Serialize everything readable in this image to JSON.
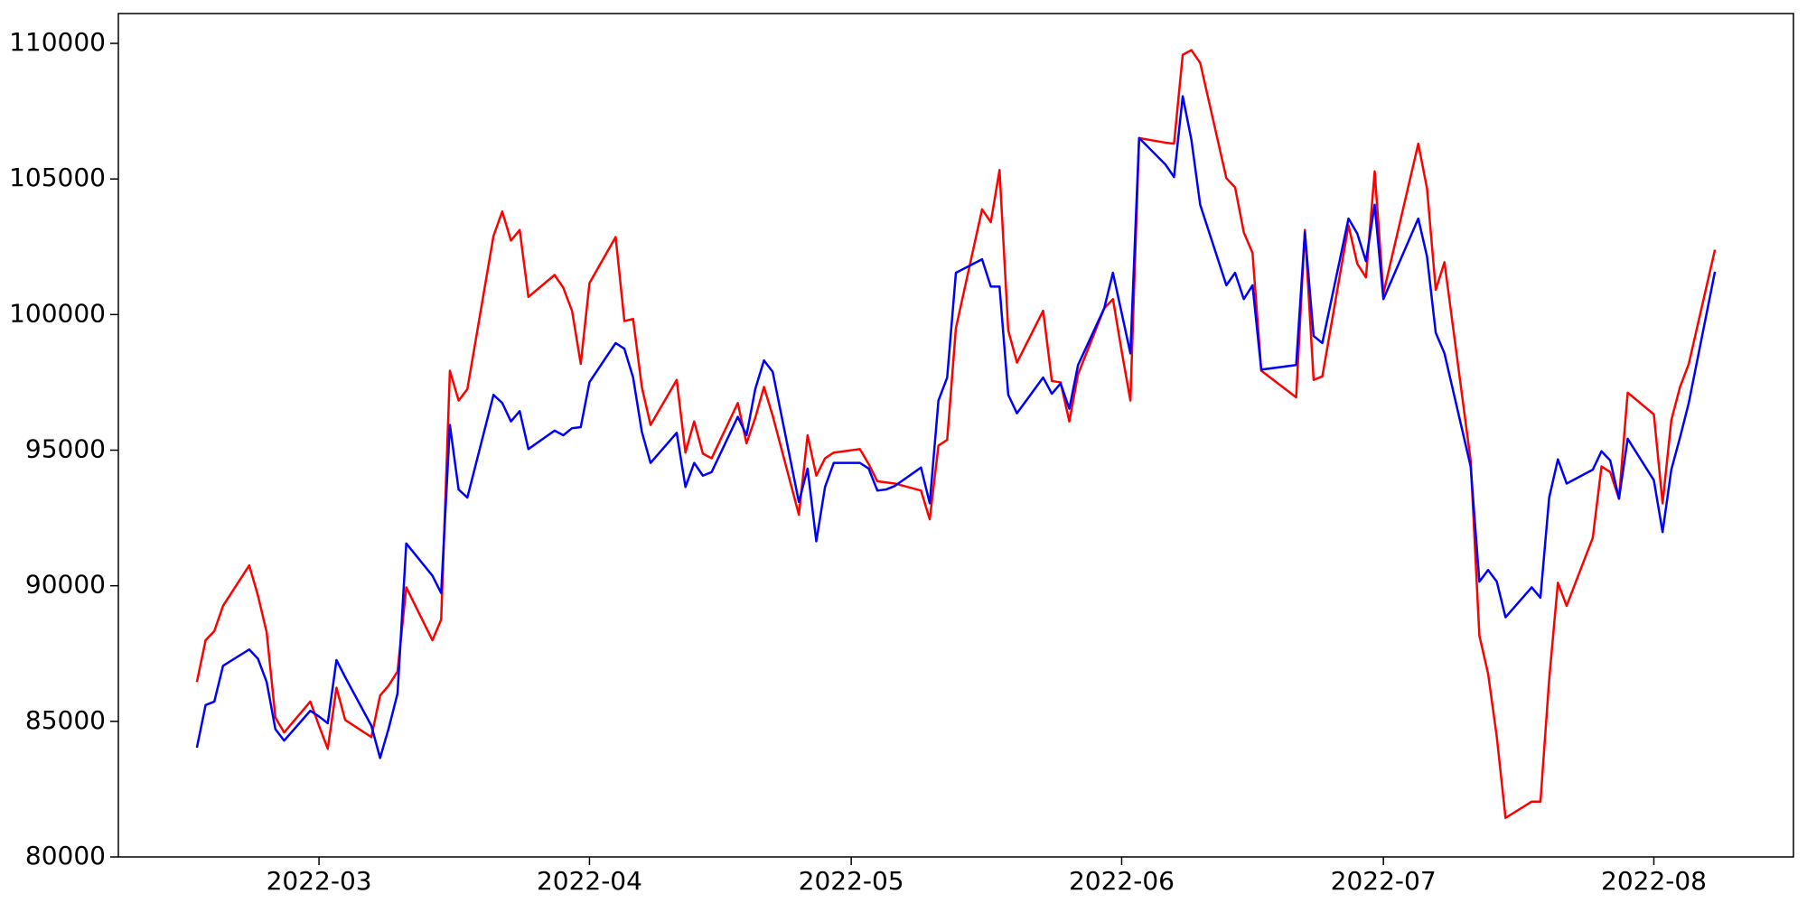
{
  "chart_data": {
    "type": "line",
    "x": [
      19038,
      19039,
      19040,
      19041,
      19044,
      19045,
      19046,
      19047,
      19048,
      19051,
      19052,
      19053,
      19054,
      19055,
      19058,
      19059,
      19060,
      19061,
      19062,
      19065,
      19066,
      19067,
      19068,
      19069,
      19072,
      19073,
      19074,
      19075,
      19076,
      19079,
      19080,
      19081,
      19082,
      19083,
      19086,
      19087,
      19088,
      19089,
      19090,
      19093,
      19094,
      19095,
      19096,
      19097,
      19100,
      19101,
      19102,
      19103,
      19104,
      19107,
      19108,
      19109,
      19110,
      19111,
      19114,
      19115,
      19116,
      19117,
      19118,
      19121,
      19122,
      19123,
      19124,
      19125,
      19128,
      19129,
      19130,
      19131,
      19132,
      19135,
      19136,
      19137,
      19138,
      19139,
      19142,
      19143,
      19144,
      19145,
      19146,
      19149,
      19150,
      19151,
      19152,
      19153,
      19156,
      19157,
      19158,
      19159,
      19160,
      19164,
      19165,
      19166,
      19167,
      19170,
      19171,
      19172,
      19173,
      19174,
      19178,
      19179,
      19180,
      19181,
      19184,
      19185,
      19186,
      19187,
      19188,
      19191,
      19192,
      19193,
      19194,
      19195,
      19198,
      19199,
      19200,
      19201,
      19202,
      19205,
      19206,
      19207,
      19208,
      19209,
      19212
    ],
    "series": [
      {
        "color": "#ff0000",
        "values": [
          86450,
          87990,
          88330,
          89260,
          90750,
          89640,
          88280,
          85140,
          84590,
          85730,
          84840,
          83990,
          86240,
          85050,
          84420,
          85950,
          86330,
          86840,
          89940,
          87990,
          88750,
          97930,
          96830,
          97250,
          102900,
          103800,
          102730,
          103120,
          100650,
          101460,
          100990,
          100140,
          98180,
          101160,
          102860,
          99760,
          99840,
          97330,
          95930,
          97590,
          94910,
          96060,
          94870,
          94700,
          96740,
          95250,
          96190,
          97330,
          96270,
          92620,
          95550,
          94060,
          94700,
          94910,
          95040,
          94490,
          93850,
          93810,
          93770,
          93510,
          92450,
          95170,
          95380,
          99500,
          103880,
          103410,
          105330,
          99420,
          98230,
          100140,
          97550,
          97500,
          96060,
          97800,
          100230,
          100570,
          98650,
          96830,
          106510,
          106340,
          106300,
          109580,
          109750,
          109280,
          105030,
          104690,
          103030,
          102270,
          97930,
          96950,
          103120,
          97590,
          97720,
          103290,
          101880,
          101370,
          105280,
          100780,
          106300,
          104650,
          100910,
          101930,
          94620,
          88160,
          86760,
          84420,
          81440,
          82040,
          82040,
          86540,
          90110,
          89260,
          91770,
          94400,
          94190,
          93210,
          97120,
          96320,
          93040,
          96100,
          97330,
          98180,
          102390
        ]
      },
      {
        "color": "#0000ff",
        "values": [
          84030,
          85600,
          85730,
          87050,
          87650,
          87310,
          86450,
          84710,
          84290,
          85390,
          85180,
          84930,
          87260,
          86630,
          84840,
          83650,
          84760,
          86030,
          91560,
          90370,
          89730,
          95930,
          93550,
          93250,
          97040,
          96740,
          96060,
          96440,
          95040,
          95720,
          95550,
          95810,
          95850,
          97510,
          98950,
          98740,
          97680,
          95680,
          94530,
          95640,
          93640,
          94530,
          94060,
          94190,
          96230,
          95550,
          97250,
          98310,
          97890,
          93090,
          94320,
          91640,
          93640,
          94530,
          94530,
          94320,
          93510,
          93550,
          93680,
          94360,
          93040,
          96830,
          97680,
          101540,
          102040,
          101030,
          101030,
          97040,
          96360,
          97680,
          97080,
          97460,
          96530,
          98140,
          100230,
          101540,
          100060,
          98570,
          106510,
          105540,
          105070,
          108050,
          106430,
          104050,
          101080,
          101540,
          100570,
          101080,
          97970,
          98140,
          103030,
          99210,
          98950,
          103540,
          102990,
          101970,
          104050,
          100570,
          103540,
          102140,
          99330,
          98570,
          94400,
          90150,
          90580,
          90150,
          88840,
          89940,
          89560,
          93250,
          94660,
          93770,
          94280,
          94960,
          94620,
          93210,
          95420,
          93890,
          91980,
          94280,
          95470,
          96740,
          101580
        ]
      }
    ],
    "xlim": [
      19029,
      19221
    ],
    "xticks": [
      {
        "value": 19052,
        "label": "2022-03"
      },
      {
        "value": 19083,
        "label": "2022-04"
      },
      {
        "value": 19113,
        "label": "2022-05"
      },
      {
        "value": 19144,
        "label": "2022-06"
      },
      {
        "value": 19174,
        "label": "2022-07"
      },
      {
        "value": 19205,
        "label": "2022-08"
      }
    ],
    "ylim": [
      80000,
      111100
    ],
    "yticks": [
      80000,
      85000,
      90000,
      95000,
      100000,
      105000,
      110000
    ],
    "grid": false
  }
}
